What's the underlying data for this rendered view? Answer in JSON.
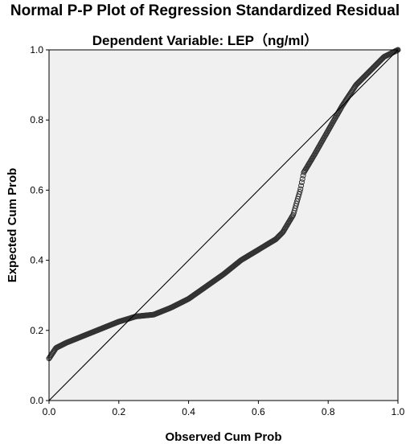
{
  "chart_data": {
    "type": "scatter",
    "title": "Normal P-P Plot of Regression Standardized Residual",
    "subtitle": "Dependent Variable: LEP（ng/ml）",
    "xlabel": "Observed Cum Prob",
    "ylabel": "Expected Cum Prob",
    "xlim": [
      0,
      1
    ],
    "ylim": [
      0,
      1
    ],
    "xticks": [
      "0.0",
      "0.2",
      "0.4",
      "0.6",
      "0.8",
      "1.0"
    ],
    "yticks": [
      "0.0",
      "0.2",
      "0.4",
      "0.6",
      "0.8",
      "1.0"
    ],
    "grid": false,
    "legend": "none",
    "reference_line": {
      "from": [
        0,
        0
      ],
      "to": [
        1,
        1
      ]
    },
    "colors": {
      "plot_background": "#f0f0f0",
      "marker_edge": "#333333",
      "line": "#000000"
    },
    "curve_points": [
      [
        0.0,
        0.12
      ],
      [
        0.02,
        0.15
      ],
      [
        0.05,
        0.165
      ],
      [
        0.1,
        0.185
      ],
      [
        0.15,
        0.205
      ],
      [
        0.2,
        0.225
      ],
      [
        0.25,
        0.24
      ],
      [
        0.3,
        0.245
      ],
      [
        0.35,
        0.265
      ],
      [
        0.4,
        0.29
      ],
      [
        0.45,
        0.325
      ],
      [
        0.5,
        0.36
      ],
      [
        0.55,
        0.4
      ],
      [
        0.6,
        0.43
      ],
      [
        0.65,
        0.46
      ],
      [
        0.67,
        0.48
      ],
      [
        0.7,
        0.53
      ],
      [
        0.72,
        0.6
      ],
      [
        0.73,
        0.65
      ],
      [
        0.76,
        0.7
      ],
      [
        0.8,
        0.77
      ],
      [
        0.84,
        0.84
      ],
      [
        0.88,
        0.9
      ],
      [
        0.92,
        0.94
      ],
      [
        0.96,
        0.98
      ],
      [
        1.0,
        1.0
      ]
    ],
    "n_points": 520
  }
}
